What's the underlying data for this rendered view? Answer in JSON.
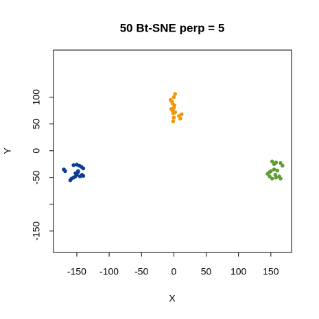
{
  "chart_data": {
    "type": "scatter",
    "title": "50 Bt-SNE perp = 5",
    "x_label": "X",
    "y_label": "Y",
    "xlim": [
      -186,
      182
    ],
    "ylim": [
      -190,
      188
    ],
    "xticks": [
      -150,
      -100,
      -50,
      0,
      50,
      100,
      150
    ],
    "yticks": [
      -150,
      {
        "value": -100,
        "label": null
      },
      -50,
      0,
      50,
      100
    ],
    "series": [
      {
        "color": "#0b3d91",
        "x": [
          -170,
          -168,
          -160,
          -158,
          -155,
          -152,
          -150,
          -148,
          -145,
          -142,
          -140,
          -155,
          -150,
          -146,
          -143,
          -140,
          -148,
          -152
        ],
        "values": [
          -35,
          -38,
          -55,
          -52,
          -50,
          -48,
          -45,
          -40,
          -48,
          -45,
          -47,
          -27,
          -26,
          -28,
          -30,
          -33,
          -38,
          -42
        ]
      },
      {
        "color": "#f2960c",
        "x": [
          -5,
          -3,
          0,
          2,
          -2,
          0,
          -2,
          -1,
          2,
          0,
          -1,
          8,
          10,
          12,
          1,
          -4
        ],
        "values": [
          95,
          92,
          100,
          106,
          88,
          80,
          75,
          70,
          72,
          62,
          55,
          65,
          60,
          68,
          85,
          78
        ]
      },
      {
        "color": "#5e9e32",
        "x": [
          148,
          145,
          150,
          152,
          155,
          158,
          155,
          160,
          148,
          152,
          158,
          163,
          165,
          168,
          165,
          157
        ],
        "values": [
          -40,
          -43,
          -38,
          -20,
          -25,
          -22,
          -35,
          -37,
          -48,
          -52,
          -50,
          -48,
          -52,
          -28,
          -23,
          -45
        ]
      }
    ]
  }
}
